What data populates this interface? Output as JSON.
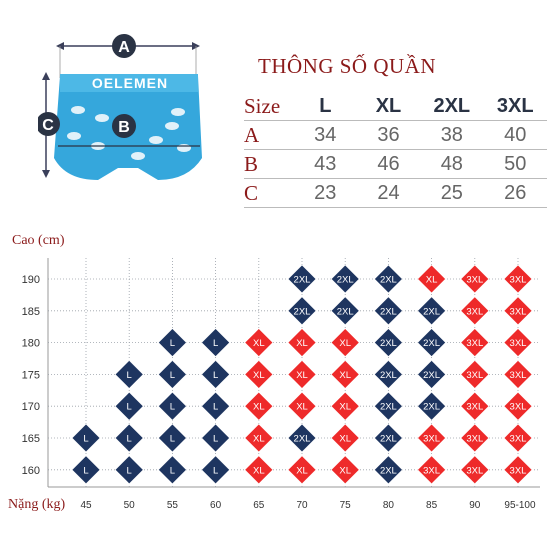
{
  "colors": {
    "navy": "#1e3560",
    "red": "#ee2a2a",
    "accent": "#8b1a1a"
  },
  "illustration": {
    "dim_labels": [
      "A",
      "B",
      "C"
    ]
  },
  "spec": {
    "title": "THÔNG SỐ QUẦN",
    "header_label": "Size",
    "sizes": [
      "L",
      "XL",
      "2XL",
      "3XL"
    ],
    "rows": [
      {
        "label": "A",
        "values": [
          "34",
          "36",
          "38",
          "40"
        ]
      },
      {
        "label": "B",
        "values": [
          "43",
          "46",
          "48",
          "50"
        ]
      },
      {
        "label": "C",
        "values": [
          "23",
          "24",
          "25",
          "26"
        ]
      }
    ]
  },
  "chart_data": {
    "type": "table",
    "y_title": "Cao (cm)",
    "x_title": "Nặng (kg)",
    "x": [
      "45",
      "50",
      "55",
      "60",
      "65",
      "70",
      "75",
      "80",
      "85",
      "90",
      "95-100"
    ],
    "y": [
      "190",
      "185",
      "180",
      "175",
      "170",
      "165",
      "160"
    ],
    "cells": [
      [
        "",
        "",
        "",
        "",
        "",
        "2XL",
        "2XL",
        "2XL",
        "XL",
        "3XL",
        "3XL"
      ],
      [
        "",
        "",
        "",
        "",
        "",
        "2XL",
        "2XL",
        "2XL",
        "2XL",
        "3XL",
        "3XL"
      ],
      [
        "",
        "",
        "L",
        "L",
        "XL",
        "XL",
        "XL",
        "2XL",
        "2XL",
        "3XL",
        "3XL"
      ],
      [
        "",
        "L",
        "L",
        "L",
        "XL",
        "XL",
        "XL",
        "2XL",
        "2XL",
        "3XL",
        "3XL"
      ],
      [
        "",
        "L",
        "L",
        "L",
        "XL",
        "XL",
        "XL",
        "2XL",
        "2XL",
        "3XL",
        "3XL"
      ],
      [
        "L",
        "L",
        "L",
        "L",
        "XL",
        "2XL",
        "XL",
        "2XL",
        "3XL",
        "3XL",
        "3XL"
      ],
      [
        "L",
        "L",
        "L",
        "L",
        "XL",
        "XL",
        "XL",
        "2XL",
        "3XL",
        "3XL",
        "3XL"
      ]
    ],
    "size_colors": {
      "L": "navy",
      "XL": "red",
      "2XL": "navy",
      "3XL": "red"
    }
  }
}
